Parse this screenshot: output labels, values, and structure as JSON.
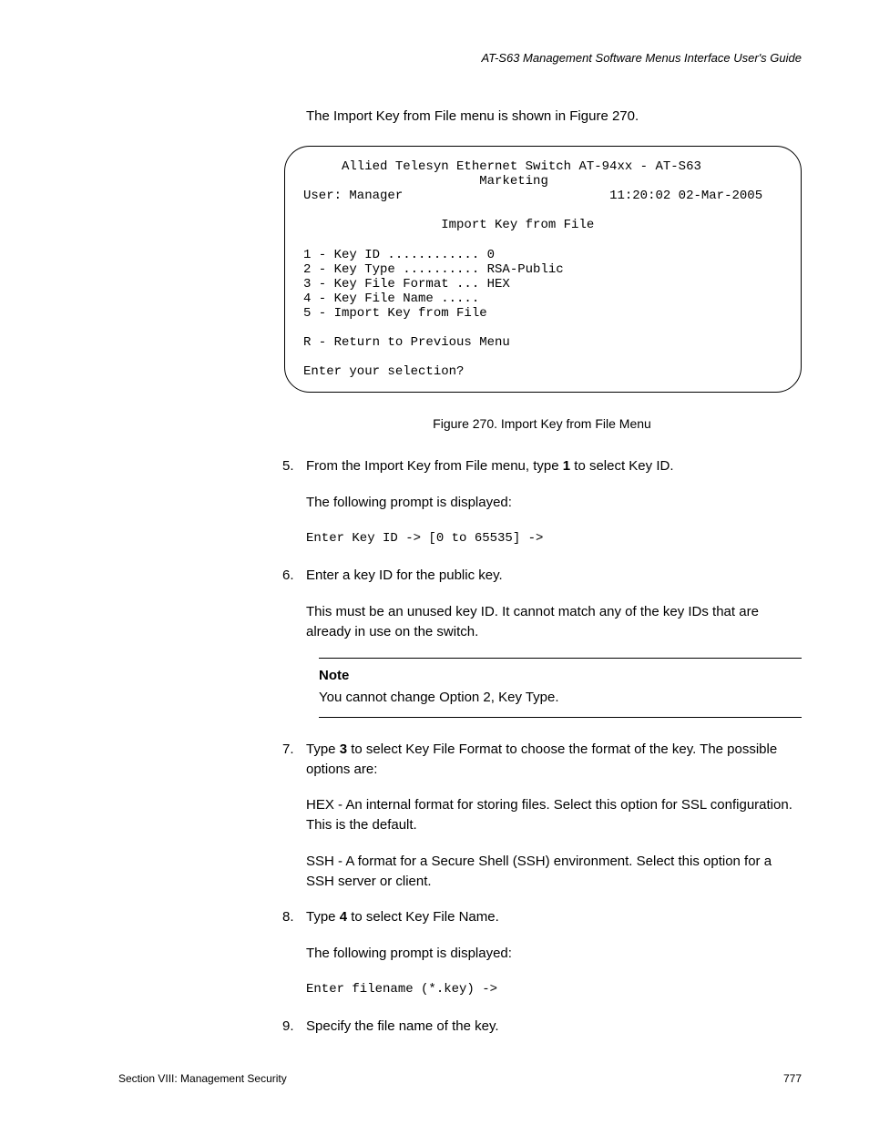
{
  "header": {
    "guide_title": "AT-S63 Management Software Menus Interface User's Guide"
  },
  "intro_text": "The Import Key from File menu is shown in Figure 270.",
  "terminal": {
    "line1": "     Allied Telesyn Ethernet Switch AT-94xx - AT-S63",
    "line2": "                       Marketing",
    "user_label": "User: Manager",
    "timestamp": "11:20:02 02-Mar-2005",
    "title": "                  Import Key from File",
    "opt1": "1 - Key ID ............ 0",
    "opt2": "2 - Key Type .......... RSA-Public",
    "opt3": "3 - Key File Format ... HEX",
    "opt4": "4 - Key File Name .....",
    "opt5": "5 - Import Key from File",
    "return": "R - Return to Previous Menu",
    "prompt": "Enter your selection?"
  },
  "figure_caption": "Figure 270. Import Key from File Menu",
  "steps": {
    "s5": {
      "num": "5.",
      "p1a": "From the Import Key from File menu, type ",
      "p1b": "1",
      "p1c": " to select Key ID.",
      "p2": "The following prompt is displayed:",
      "code": "Enter Key ID -> [0 to 65535] ->"
    },
    "s6": {
      "num": "6.",
      "p1": "Enter a key ID for the public key.",
      "p2": "This must be an unused key ID. It cannot match any of the key IDs that are already in use on the switch."
    },
    "note": {
      "title": "Note",
      "body": "You cannot change Option 2, Key Type."
    },
    "s7": {
      "num": "7.",
      "p1a": "Type ",
      "p1b": "3",
      "p1c": " to select Key File Format to choose the format of the key. The possible options are:",
      "p2": "HEX - An internal format for storing files. Select this option for SSL configuration. This is the default.",
      "p3": "SSH - A format for a Secure Shell (SSH) environment. Select this option for a SSH server or client."
    },
    "s8": {
      "num": "8.",
      "p1a": "Type ",
      "p1b": "4",
      "p1c": " to select Key File Name.",
      "p2": "The following prompt is displayed:",
      "code": "Enter filename (*.key) ->"
    },
    "s9": {
      "num": "9.",
      "p1": "Specify the file name of the key."
    }
  },
  "footer": {
    "section": "Section VIII: Management Security",
    "page": "777"
  }
}
